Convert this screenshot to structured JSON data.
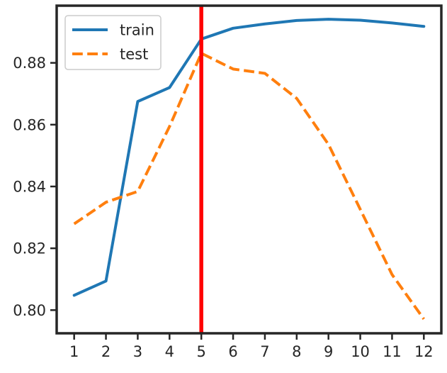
{
  "chart_data": {
    "type": "line",
    "title": "",
    "xlabel": "",
    "ylabel": "",
    "x": [
      1,
      2,
      3,
      4,
      5,
      6,
      7,
      8,
      9,
      10,
      11,
      12
    ],
    "xlim": [
      0.45,
      12.55
    ],
    "ylim": [
      0.7925,
      0.8985
    ],
    "y_ticks": [
      0.8,
      0.82,
      0.84,
      0.86,
      0.88
    ],
    "y_tick_labels": [
      "0.80",
      "0.82",
      "0.84",
      "0.86",
      "0.88"
    ],
    "x_tick_labels": [
      "1",
      "2",
      "3",
      "4",
      "5",
      "6",
      "7",
      "8",
      "9",
      "10",
      "11",
      "12"
    ],
    "grid": false,
    "legend_position": "top-left",
    "series": [
      {
        "name": "train",
        "color": "#1f77b4",
        "style": "solid",
        "values": [
          0.8048,
          0.8094,
          0.8675,
          0.872,
          0.8877,
          0.8912,
          0.8926,
          0.8937,
          0.8941,
          0.8938,
          0.8929,
          0.8918
        ]
      },
      {
        "name": "test",
        "color": "#ff7f0e",
        "style": "dashed",
        "values": [
          0.8279,
          0.8349,
          0.8384,
          0.8594,
          0.8831,
          0.878,
          0.8766,
          0.8685,
          0.8536,
          0.8326,
          0.8115,
          0.7971
        ]
      }
    ],
    "vertical_line": {
      "x": 5,
      "color": "#ff0000"
    }
  }
}
